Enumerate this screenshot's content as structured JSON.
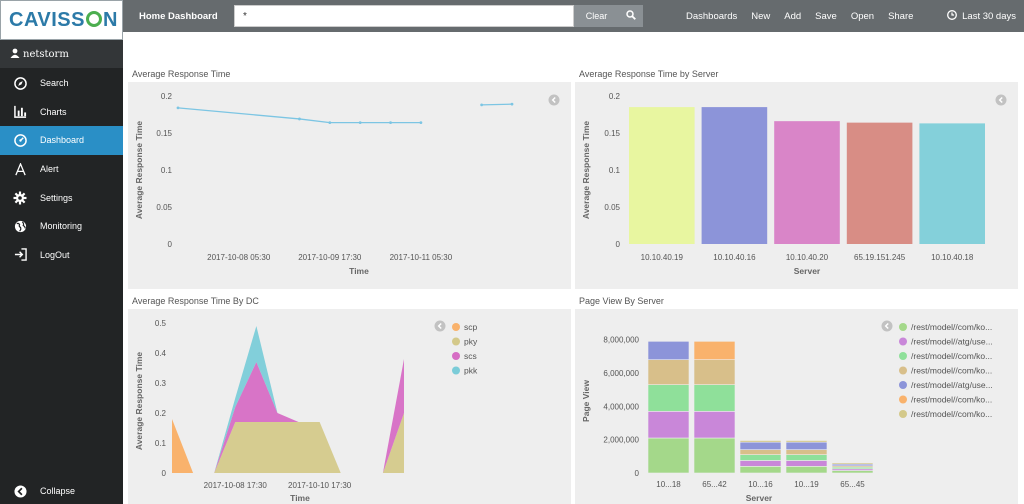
{
  "brand": {
    "logo_left": "CAVISS",
    "logo_right": "N"
  },
  "user": {
    "name": "netstorm"
  },
  "sidebar": {
    "items": [
      {
        "label": "Search",
        "icon": "compass-icon"
      },
      {
        "label": "Charts",
        "icon": "bar-chart-icon"
      },
      {
        "label": "Dashboard",
        "icon": "dashboard-icon",
        "active": true
      },
      {
        "label": "Alert",
        "icon": "alert-icon"
      },
      {
        "label": "Settings",
        "icon": "gear-icon"
      },
      {
        "label": "Monitoring",
        "icon": "globe-icon"
      },
      {
        "label": "LogOut",
        "icon": "logout-icon"
      }
    ],
    "collapse_label": "Collapse"
  },
  "topbar": {
    "title": "Home Dashboard",
    "search_value": "*",
    "clear_label": "Clear",
    "menu": [
      "Dashboards",
      "New",
      "Add",
      "Save",
      "Open",
      "Share"
    ],
    "time_range": "Last 30 days"
  },
  "panels": [
    {
      "title": "Average Response Time"
    },
    {
      "title": "Average Response Time by Server"
    },
    {
      "title": "Average Response Time By DC"
    },
    {
      "title": "Page View By Server"
    }
  ],
  "colors": {
    "accent": "#2a8fc6",
    "topbar": "#666b6e",
    "sidebar": "#222425"
  },
  "chart_data": [
    {
      "type": "line",
      "title": "Average Response Time",
      "xlabel": "Time",
      "ylabel": "Average Response Time",
      "ylim": [
        0,
        0.2
      ],
      "yticks": [
        0,
        0.05,
        0.1,
        0.15,
        0.2
      ],
      "xticks": [
        "2017-10-08 05:30",
        "2017-10-09 17:30",
        "2017-10-11 05:30"
      ],
      "segments": [
        [
          {
            "t": "2017-10-07 05:30",
            "y": 0.184
          },
          {
            "t": "2017-10-09 05:30",
            "y": 0.169
          },
          {
            "t": "2017-10-09 17:30",
            "y": 0.164
          },
          {
            "t": "2017-10-10 05:30",
            "y": 0.164
          },
          {
            "t": "2017-10-10 17:30",
            "y": 0.164
          },
          {
            "t": "2017-10-11 05:30",
            "y": 0.164
          }
        ],
        [
          {
            "t": "2017-10-12 05:30",
            "y": 0.188
          },
          {
            "t": "2017-10-12 17:30",
            "y": 0.189
          }
        ]
      ],
      "color": "#7cc5e3"
    },
    {
      "type": "bar",
      "title": "Average Response Time by Server",
      "xlabel": "Server",
      "ylabel": "Average Response Time",
      "ylim": [
        0,
        0.2
      ],
      "yticks": [
        0,
        0.05,
        0.1,
        0.15,
        0.2
      ],
      "categories": [
        "10.10.40.19",
        "10.10.40.16",
        "10.10.40.20",
        "65.19.151.245",
        "10.10.40.18"
      ],
      "values": [
        0.185,
        0.185,
        0.166,
        0.164,
        0.163
      ],
      "colors": [
        "#e8f6a0",
        "#8c94d9",
        "#d985c8",
        "#d88d85",
        "#84d0da"
      ]
    },
    {
      "type": "area",
      "title": "Average Response Time By DC",
      "xlabel": "Time",
      "ylabel": "Average Response Time",
      "ylim": [
        0,
        0.5
      ],
      "yticks": [
        0,
        0.1,
        0.2,
        0.3,
        0.4,
        0.5
      ],
      "xticks": [
        "2017-10-08 17:30",
        "2017-10-10 17:30"
      ],
      "legend": [
        "scp",
        "pky",
        "scs",
        "pkk"
      ],
      "legend_colors": [
        "#f9b26c",
        "#d4c98a",
        "#d66dc4",
        "#7bccd8"
      ],
      "legend_position": "top-right",
      "x": [
        "2017-10-07 05:30",
        "2017-10-07 17:30",
        "2017-10-08 05:30",
        "2017-10-08 17:30",
        "2017-10-09 05:30",
        "2017-10-09 17:30",
        "2017-10-10 05:30",
        "2017-10-10 17:30",
        "2017-10-11 05:30",
        "2017-10-11 17:30",
        "2017-10-12 05:30",
        "2017-10-12 17:30"
      ],
      "series": [
        {
          "name": "scp",
          "values": [
            0.18,
            0,
            null,
            null,
            null,
            null,
            null,
            null,
            null,
            null,
            null,
            null
          ]
        },
        {
          "name": "pky",
          "values": [
            null,
            null,
            0,
            0.17,
            0.17,
            0.17,
            0.17,
            0.17,
            0,
            null,
            0,
            0.2
          ]
        },
        {
          "name": "scs",
          "values": [
            null,
            null,
            0,
            0.05,
            0.2,
            0.03,
            0,
            0,
            0,
            null,
            0,
            0.18
          ]
        },
        {
          "name": "pkk",
          "values": [
            null,
            null,
            0,
            0.03,
            0.12,
            0,
            0,
            0,
            0,
            null,
            0,
            0
          ]
        }
      ]
    },
    {
      "type": "bar",
      "stacked": true,
      "title": "Page View By Server",
      "xlabel": "Server",
      "ylabel": "Page View",
      "ylim": [
        0,
        9000000
      ],
      "yticks": [
        0,
        2000000,
        4000000,
        6000000,
        8000000
      ],
      "ytick_labels": [
        "0",
        "2,000,000",
        "4,000,000",
        "6,000,000",
        "8,000,000"
      ],
      "categories": [
        "10...18",
        "65...42",
        "10...16",
        "10...19",
        "65...45"
      ],
      "legend": [
        "/rest/model//com/ko...",
        "/rest/model//atg/use...",
        "/rest/model//com/ko...",
        "/rest/model//com/ko...",
        "/rest/model//atg/use...",
        "/rest/model//com/ko...",
        "/rest/model//com/ko..."
      ],
      "legend_position": "top-right",
      "series": [
        {
          "color": "#a4d88a",
          "values": [
            2100000,
            2100000,
            400000,
            400000,
            150000
          ]
        },
        {
          "color": "#c987d9",
          "values": [
            1600000,
            1600000,
            350000,
            350000,
            100000
          ]
        },
        {
          "color": "#8fe09a",
          "values": [
            1600000,
            1600000,
            350000,
            350000,
            100000
          ]
        },
        {
          "color": "#d8bf8a",
          "values": [
            1500000,
            1500000,
            300000,
            300000,
            80000
          ]
        },
        {
          "color": "#8c94d9",
          "values": [
            1100000,
            0,
            450000,
            450000,
            100000
          ]
        },
        {
          "color": "#f9b26c",
          "values": [
            0,
            1100000,
            0,
            0,
            0
          ]
        },
        {
          "color": "#d4c98a",
          "values": [
            0,
            0,
            100000,
            100000,
            80000
          ]
        }
      ]
    }
  ]
}
